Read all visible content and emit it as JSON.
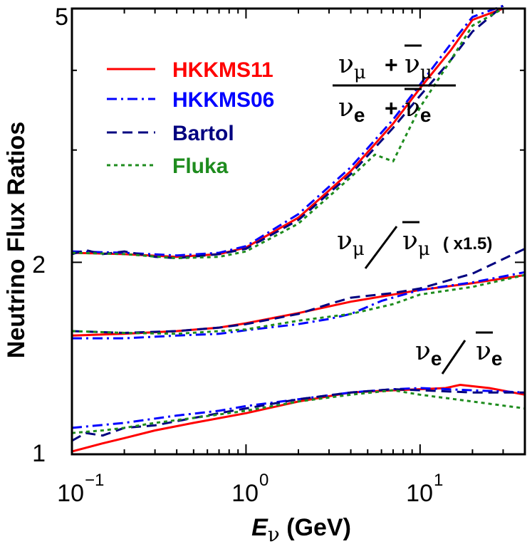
{
  "chart_data": {
    "type": "line",
    "title": "",
    "xlabel": "E",
    "xlabel_sub": "ν",
    "xlabel_unit": " (GeV)",
    "ylabel": "Neutrino Flux Ratios",
    "x_scale": "log",
    "y_scale": "log",
    "xlim": [
      0.1,
      40
    ],
    "ylim": [
      1,
      5
    ],
    "x_ticks": [
      {
        "value": 0.1,
        "base": "10",
        "exp": "−1"
      },
      {
        "value": 1,
        "base": "10",
        "exp": "0"
      },
      {
        "value": 10,
        "base": "10",
        "exp": "1"
      }
    ],
    "y_ticks": [
      {
        "value": 1,
        "label": "1"
      },
      {
        "value": 2,
        "label": "2"
      },
      {
        "value": 5,
        "label": "5"
      }
    ],
    "grid": false,
    "legend_position": "top-left",
    "annotations": {
      "mu_e": {
        "num_a": "ν",
        "num_a_sub": "μ",
        "num_b": "+ ν",
        "num_b_sub": "μ",
        "den_a": "ν",
        "den_a_sub": "e",
        "den_b": "+ ν",
        "den_b_sub": "e"
      },
      "mu_mubar": {
        "a": "ν",
        "a_sub": "μ",
        "b": "ν",
        "b_sub": "μ",
        "note": "( x1.5)"
      },
      "e_ebar": {
        "a": "ν",
        "a_sub": "e",
        "b": "ν",
        "b_sub": "e"
      }
    },
    "series": [
      {
        "name": "HKKMS11",
        "color": "#ff0000",
        "dash": "solid",
        "groups": [
          {
            "x": [
              0.1,
              0.2,
              0.4,
              0.7,
              1.0,
              2.0,
              4.0,
              7.0,
              10,
              15,
              20,
              30
            ],
            "y": [
              2.07,
              2.06,
              2.04,
              2.06,
              2.11,
              2.35,
              2.78,
              3.3,
              3.75,
              4.3,
              4.8,
              5.0
            ]
          },
          {
            "x": [
              0.1,
              0.2,
              0.4,
              0.7,
              1.0,
              2.0,
              4.0,
              7.0,
              10,
              20,
              40
            ],
            "y": [
              1.535,
              1.545,
              1.56,
              1.58,
              1.605,
              1.665,
              1.735,
              1.78,
              1.81,
              1.855,
              1.91
            ]
          },
          {
            "x": [
              0.1,
              0.15,
              0.2,
              0.3,
              0.5,
              1.0,
              2.0,
              4.0,
              7.0,
              10,
              14,
              17,
              25,
              40
            ],
            "y": [
              1.01,
              1.04,
              1.06,
              1.09,
              1.12,
              1.16,
              1.21,
              1.25,
              1.26,
              1.265,
              1.27,
              1.285,
              1.27,
              1.24
            ]
          }
        ]
      },
      {
        "name": "HKKMS06",
        "color": "#0000ff",
        "dash": "dashdot",
        "groups": [
          {
            "x": [
              0.1,
              0.2,
              0.4,
              0.7,
              1.0,
              2.0,
              4.0,
              7.0,
              10,
              15,
              20,
              30
            ],
            "y": [
              2.08,
              2.07,
              2.05,
              2.07,
              2.12,
              2.38,
              2.82,
              3.35,
              3.8,
              4.4,
              4.85,
              5.05
            ]
          },
          {
            "x": [
              0.1,
              0.2,
              0.4,
              0.7,
              1.0,
              2.0,
              3.0,
              4.0,
              6.0,
              10,
              20,
              40
            ],
            "y": [
              1.52,
              1.52,
              1.535,
              1.545,
              1.565,
              1.6,
              1.63,
              1.66,
              1.74,
              1.81,
              1.86,
              1.93
            ]
          },
          {
            "x": [
              0.1,
              0.2,
              0.4,
              0.7,
              1.0,
              2.0,
              4.0,
              7.0,
              10,
              20,
              40
            ],
            "y": [
              1.1,
              1.12,
              1.15,
              1.17,
              1.19,
              1.22,
              1.25,
              1.265,
              1.27,
              1.26,
              1.25
            ]
          }
        ]
      },
      {
        "name": "Bartol",
        "color": "#000080",
        "dash": "dashed",
        "groups": [
          {
            "x": [
              0.1,
              0.12,
              0.15,
              0.2,
              0.3,
              0.4,
              0.7,
              1.0,
              2.0,
              4.0,
              7.0,
              10,
              15,
              20,
              30
            ],
            "y": [
              2.06,
              2.09,
              2.06,
              2.08,
              2.04,
              2.03,
              2.06,
              2.1,
              2.33,
              2.75,
              3.25,
              3.65,
              4.15,
              4.6,
              5.05
            ]
          },
          {
            "x": [
              0.1,
              0.2,
              0.4,
              0.7,
              1.0,
              2.0,
              3.0,
              4.0,
              7.0,
              10,
              20,
              40
            ],
            "y": [
              1.56,
              1.55,
              1.56,
              1.58,
              1.6,
              1.66,
              1.72,
              1.76,
              1.79,
              1.82,
              1.92,
              2.1
            ]
          },
          {
            "x": [
              0.1,
              0.12,
              0.15,
              0.2,
              0.3,
              0.5,
              0.7,
              1.0,
              2.0,
              4.0,
              7.0,
              10,
              20,
              40
            ],
            "y": [
              1.05,
              1.08,
              1.07,
              1.1,
              1.11,
              1.14,
              1.16,
              1.18,
              1.22,
              1.25,
              1.265,
              1.26,
              1.25,
              1.25
            ]
          }
        ]
      },
      {
        "name": "Fluka",
        "color": "#1e8c1e",
        "dash": "dotted",
        "groups": [
          {
            "x": [
              0.1,
              0.2,
              0.4,
              0.7,
              1.0,
              2.0,
              4.0,
              5.5,
              7.0,
              8.0,
              10,
              15,
              20,
              30
            ],
            "y": [
              2.07,
              2.06,
              2.03,
              2.04,
              2.08,
              2.3,
              2.72,
              2.95,
              2.88,
              3.1,
              3.5,
              4.15,
              4.7,
              5.0
            ]
          },
          {
            "x": [
              0.1,
              0.2,
              0.4,
              0.7,
              1.0,
              2.0,
              4.0,
              7.0,
              10,
              20,
              40
            ],
            "y": [
              1.56,
              1.55,
              1.545,
              1.56,
              1.57,
              1.62,
              1.66,
              1.72,
              1.78,
              1.83,
              1.91
            ]
          },
          {
            "x": [
              0.1,
              0.15,
              0.2,
              0.3,
              0.5,
              1.0,
              2.0,
              4.0,
              7.0,
              10,
              20,
              40
            ],
            "y": [
              1.08,
              1.09,
              1.1,
              1.12,
              1.14,
              1.17,
              1.21,
              1.24,
              1.26,
              1.24,
              1.21,
              1.18
            ]
          }
        ]
      }
    ]
  }
}
